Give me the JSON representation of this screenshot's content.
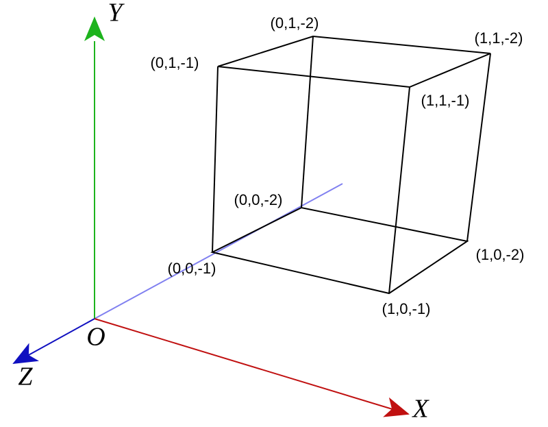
{
  "axes": {
    "x": "X",
    "y": "Y",
    "z": "Z",
    "origin": "O"
  },
  "vertices": [
    "(0,1,-2)",
    "(0,1,-1)",
    "(1,1,-2)",
    "(1,1,-1)",
    "(0,0,-2)",
    "(0,0,-1)",
    "(1,0,-2)",
    "(1,0,-1)"
  ]
}
